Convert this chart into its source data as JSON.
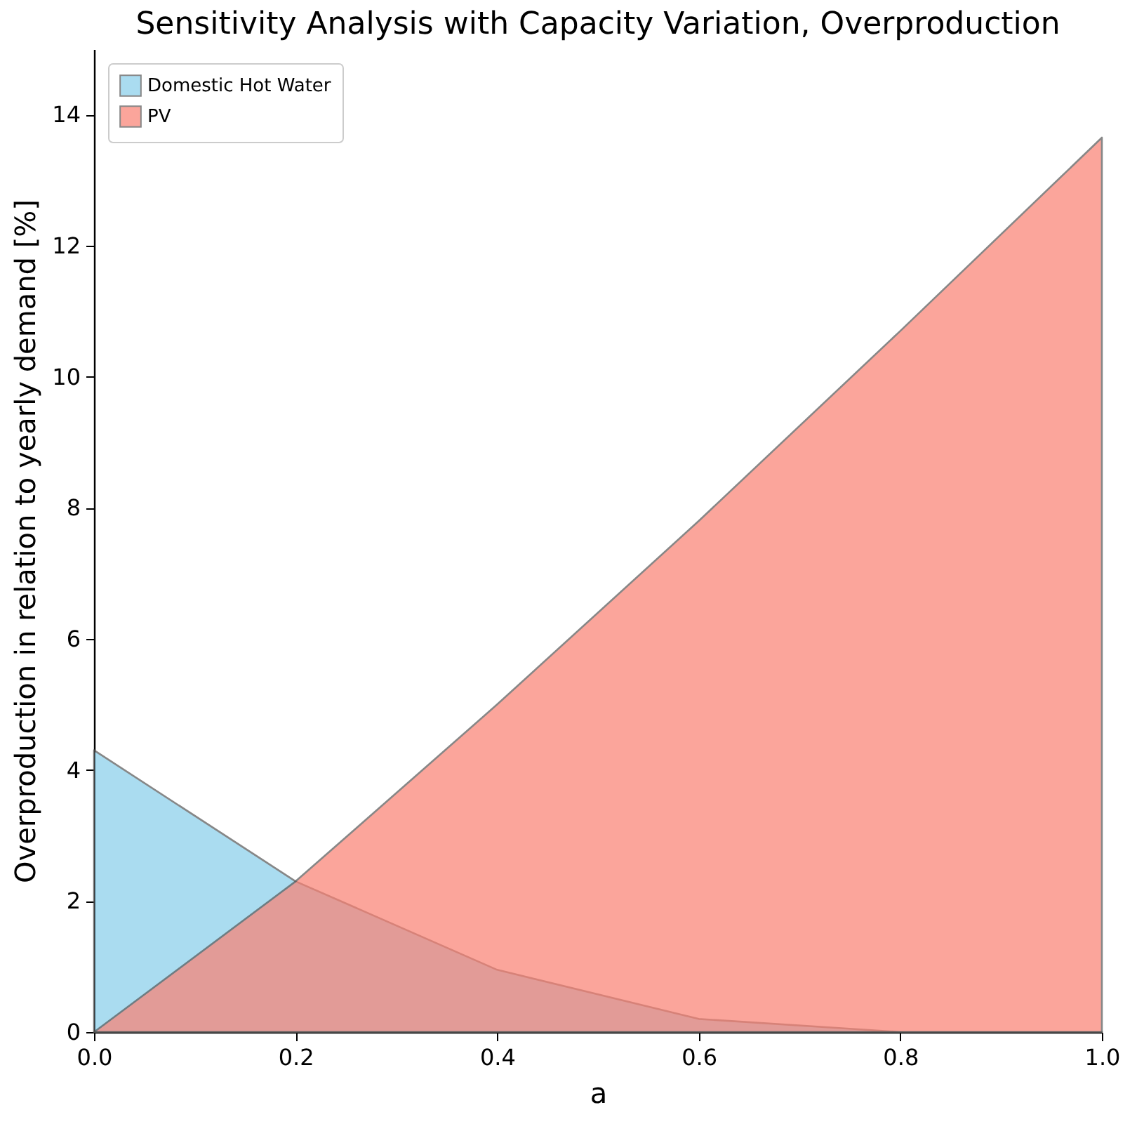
{
  "chart_data": {
    "type": "area",
    "title": "Sensitivity Analysis with Capacity Variation, Overproduction",
    "xlabel": "a",
    "ylabel": "Overproduction in relation to yearly demand [%]",
    "x": [
      0,
      0.2,
      0.4,
      0.6,
      0.8,
      1.0
    ],
    "series": [
      {
        "name": "Domestic Hot Water",
        "color": "#87ceeb",
        "values": [
          4.3,
          2.3,
          0.95,
          0.2,
          0,
          0
        ]
      },
      {
        "name": "PV",
        "color": "#fa8072",
        "values": [
          0,
          2.3,
          5.0,
          7.8,
          10.7,
          13.65
        ]
      }
    ],
    "xlim": [
      0,
      1.0
    ],
    "xticks": [
      {
        "value": 0,
        "label": "0.0"
      },
      0.2,
      0.4,
      0.6,
      0.8,
      {
        "value": 1,
        "label": "1.0"
      }
    ],
    "ylim": [
      0,
      15
    ],
    "yticks": [
      0,
      2,
      4,
      6,
      8,
      10,
      12,
      14
    ],
    "legend": "top left",
    "grid": false
  }
}
